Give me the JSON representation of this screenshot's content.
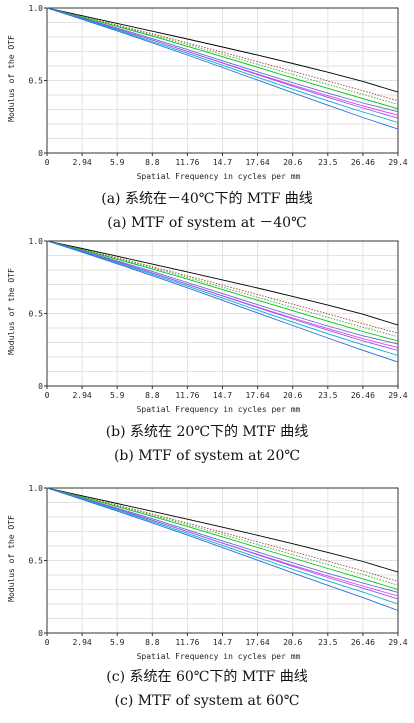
{
  "charts": [
    {
      "caption_cn": "(a)  系统在－40℃下的 MTF 曲线",
      "caption_en": "(a) MTF of system at －40℃",
      "chart_data": {
        "type": "line",
        "xlabel": "Spatial Frequency in cycles per mm",
        "ylabel": "Modulus of the OTF",
        "x_ticks": [
          "0",
          "2.94",
          "5.9",
          "8.8",
          "11.76",
          "14.7",
          "17.64",
          "20.6",
          "23.5",
          "26.46",
          "29.4"
        ],
        "y_ticks": [
          "0",
          "0.5",
          "1.0"
        ],
        "xlim": [
          0,
          29.4
        ],
        "ylim": [
          0,
          1.0
        ],
        "grid": true,
        "x": [
          0,
          2.94,
          5.88,
          8.82,
          11.76,
          14.7,
          17.64,
          20.58,
          23.52,
          26.46,
          29.4
        ],
        "series": [
          {
            "color": "#000000",
            "dash": false,
            "values": [
              1.0,
              0.947,
              0.894,
              0.84,
              0.786,
              0.731,
              0.675,
              0.617,
              0.557,
              0.494,
              0.42
            ]
          },
          {
            "color": "#b03a2e",
            "dash": true,
            "values": [
              1.0,
              0.942,
              0.883,
              0.822,
              0.759,
              0.695,
              0.63,
              0.564,
              0.497,
              0.429,
              0.36
            ]
          },
          {
            "color": "#2fa84f",
            "dash": true,
            "values": [
              1.0,
              0.94,
              0.878,
              0.814,
              0.748,
              0.68,
              0.611,
              0.542,
              0.473,
              0.404,
              0.335
            ]
          },
          {
            "color": "#00c800",
            "dash": false,
            "values": [
              1.0,
              0.938,
              0.873,
              0.806,
              0.736,
              0.664,
              0.591,
              0.518,
              0.446,
              0.375,
              0.305
            ]
          },
          {
            "color": "#5b6fd8",
            "dash": false,
            "values": [
              1.0,
              0.933,
              0.862,
              0.789,
              0.713,
              0.636,
              0.56,
              0.485,
              0.413,
              0.345,
              0.285
            ]
          },
          {
            "color": "#e040e0",
            "dash": false,
            "values": [
              1.0,
              0.929,
              0.855,
              0.779,
              0.701,
              0.622,
              0.544,
              0.468,
              0.395,
              0.325,
              0.26
            ]
          },
          {
            "color": "#a050ff",
            "dash": false,
            "values": [
              1.0,
              0.93,
              0.856,
              0.779,
              0.7,
              0.62,
              0.54,
              0.461,
              0.384,
              0.31,
              0.24
            ]
          },
          {
            "color": "#00b0c8",
            "dash": false,
            "values": [
              1.0,
              0.926,
              0.849,
              0.769,
              0.688,
              0.605,
              0.522,
              0.44,
              0.36,
              0.283,
              0.21
            ]
          },
          {
            "color": "#2a6fd8",
            "dash": false,
            "values": [
              1.0,
              0.922,
              0.842,
              0.76,
              0.676,
              0.59,
              0.503,
              0.416,
              0.33,
              0.245,
              0.165
            ]
          }
        ]
      }
    },
    {
      "caption_cn": "(b)  系统在 20℃下的 MTF 曲线",
      "caption_en": "(b) MTF of system at 20℃",
      "chart_data": {
        "type": "line",
        "xlabel": "Spatial Frequency in cycles per mm",
        "ylabel": "Modulus of the OTF",
        "x_ticks": [
          "0",
          "2.94",
          "5.9",
          "8.8",
          "11.76",
          "14.7",
          "17.64",
          "20.6",
          "23.5",
          "26.46",
          "29.4"
        ],
        "y_ticks": [
          "0",
          "0.5",
          "1.0"
        ],
        "xlim": [
          0,
          29.4
        ],
        "ylim": [
          0,
          1.0
        ],
        "grid": true,
        "x": [
          0,
          2.94,
          5.88,
          8.82,
          11.76,
          14.7,
          17.64,
          20.58,
          23.52,
          26.46,
          29.4
        ],
        "series": [
          {
            "color": "#000000",
            "dash": false,
            "values": [
              1.0,
              0.948,
              0.895,
              0.841,
              0.787,
              0.732,
              0.676,
              0.618,
              0.558,
              0.495,
              0.42
            ]
          },
          {
            "color": "#b03a2e",
            "dash": true,
            "values": [
              1.0,
              0.943,
              0.884,
              0.823,
              0.76,
              0.696,
              0.631,
              0.565,
              0.498,
              0.43,
              0.365
            ]
          },
          {
            "color": "#2fa84f",
            "dash": true,
            "values": [
              1.0,
              0.941,
              0.879,
              0.815,
              0.749,
              0.681,
              0.612,
              0.543,
              0.474,
              0.405,
              0.34
            ]
          },
          {
            "color": "#00c800",
            "dash": false,
            "values": [
              1.0,
              0.939,
              0.874,
              0.807,
              0.737,
              0.665,
              0.592,
              0.519,
              0.447,
              0.376,
              0.31
            ]
          },
          {
            "color": "#5b6fd8",
            "dash": false,
            "values": [
              1.0,
              0.934,
              0.863,
              0.79,
              0.714,
              0.637,
              0.561,
              0.486,
              0.414,
              0.346,
              0.29
            ]
          },
          {
            "color": "#e040e0",
            "dash": false,
            "values": [
              1.0,
              0.93,
              0.856,
              0.78,
              0.702,
              0.623,
              0.545,
              0.469,
              0.396,
              0.326,
              0.265
            ]
          },
          {
            "color": "#a050ff",
            "dash": false,
            "values": [
              1.0,
              0.931,
              0.857,
              0.78,
              0.701,
              0.621,
              0.541,
              0.462,
              0.385,
              0.311,
              0.245
            ]
          },
          {
            "color": "#00b0c8",
            "dash": false,
            "values": [
              1.0,
              0.927,
              0.85,
              0.77,
              0.689,
              0.606,
              0.523,
              0.441,
              0.361,
              0.284,
              0.21
            ]
          },
          {
            "color": "#2a6fd8",
            "dash": false,
            "values": [
              1.0,
              0.923,
              0.843,
              0.761,
              0.677,
              0.591,
              0.504,
              0.417,
              0.331,
              0.246,
              0.165
            ]
          }
        ]
      }
    },
    {
      "caption_cn": "(c)  系统在 60℃下的 MTF 曲线",
      "caption_en": "(c) MTF of system at 60℃",
      "chart_data": {
        "type": "line",
        "xlabel": "Spatial Frequency in cycles per mm",
        "ylabel": "Modulus of the OTF",
        "x_ticks": [
          "0",
          "2.94",
          "5.9",
          "8.8",
          "11.76",
          "14.7",
          "17.64",
          "20.6",
          "23.5",
          "26.46",
          "29.4"
        ],
        "y_ticks": [
          "0",
          "0.5",
          "1.0"
        ],
        "xlim": [
          0,
          29.4
        ],
        "ylim": [
          0,
          1.0
        ],
        "grid": true,
        "x": [
          0,
          2.94,
          5.88,
          8.82,
          11.76,
          14.7,
          17.64,
          20.58,
          23.52,
          26.46,
          29.4
        ],
        "series": [
          {
            "color": "#000000",
            "dash": false,
            "values": [
              1.0,
              0.946,
              0.893,
              0.839,
              0.785,
              0.73,
              0.674,
              0.616,
              0.556,
              0.493,
              0.42
            ]
          },
          {
            "color": "#b03a2e",
            "dash": true,
            "values": [
              1.0,
              0.941,
              0.882,
              0.821,
              0.758,
              0.694,
              0.629,
              0.563,
              0.496,
              0.428,
              0.355
            ]
          },
          {
            "color": "#2fa84f",
            "dash": true,
            "values": [
              1.0,
              0.939,
              0.877,
              0.813,
              0.747,
              0.679,
              0.61,
              0.541,
              0.472,
              0.403,
              0.33
            ]
          },
          {
            "color": "#00c800",
            "dash": false,
            "values": [
              1.0,
              0.937,
              0.872,
              0.805,
              0.735,
              0.663,
              0.59,
              0.517,
              0.445,
              0.374,
              0.3
            ]
          },
          {
            "color": "#5b6fd8",
            "dash": false,
            "values": [
              1.0,
              0.932,
              0.861,
              0.788,
              0.712,
              0.635,
              0.559,
              0.484,
              0.412,
              0.344,
              0.28
            ]
          },
          {
            "color": "#e040e0",
            "dash": false,
            "values": [
              1.0,
              0.928,
              0.854,
              0.778,
              0.7,
              0.621,
              0.543,
              0.467,
              0.394,
              0.324,
              0.255
            ]
          },
          {
            "color": "#a050ff",
            "dash": false,
            "values": [
              1.0,
              0.929,
              0.855,
              0.778,
              0.699,
              0.619,
              0.539,
              0.46,
              0.383,
              0.309,
              0.235
            ]
          },
          {
            "color": "#00b0c8",
            "dash": false,
            "values": [
              1.0,
              0.925,
              0.848,
              0.768,
              0.687,
              0.604,
              0.521,
              0.439,
              0.359,
              0.282,
              0.2
            ]
          },
          {
            "color": "#2a6fd8",
            "dash": false,
            "values": [
              1.0,
              0.921,
              0.841,
              0.759,
              0.675,
              0.589,
              0.502,
              0.415,
              0.329,
              0.244,
              0.155
            ]
          }
        ]
      }
    }
  ]
}
